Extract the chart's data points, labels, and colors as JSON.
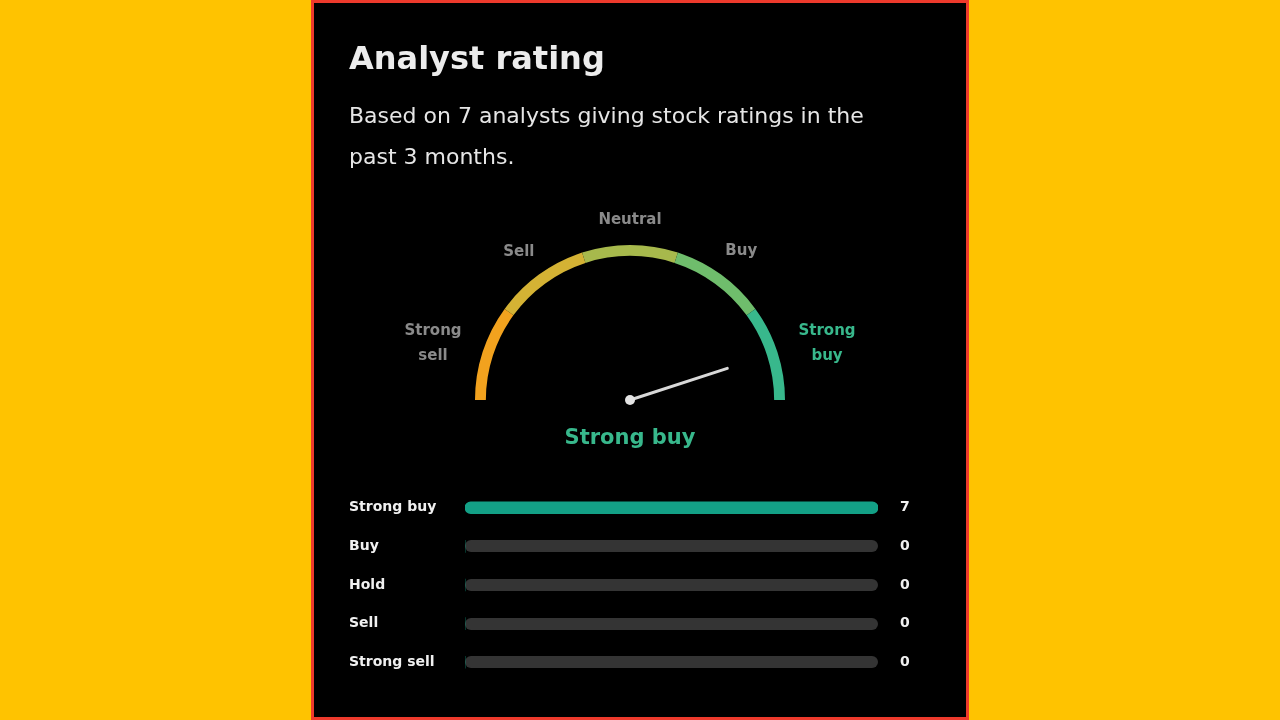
{
  "chart_data": [
    {
      "type": "donut",
      "title": "Analyst rating",
      "subtitle": "Based on 7 analysts giving stock ratings in the past 3 months.",
      "categories": [
        "Strong sell",
        "Sell",
        "Neutral",
        "Buy",
        "Strong buy"
      ],
      "values": [
        20,
        20,
        20,
        20,
        20
      ],
      "colors": [
        "#f2a21e",
        "#d4b234",
        "#a7b94c",
        "#6fbd6c",
        "#38b88c"
      ],
      "needle": "Strong buy"
    },
    {
      "type": "bar",
      "orientation": "horizontal",
      "categories": [
        "Strong buy",
        "Buy",
        "Hold",
        "Sell",
        "Strong sell"
      ],
      "values": [
        7,
        0,
        0,
        0,
        0
      ],
      "color": "#13a086",
      "xlim": [
        0,
        7
      ],
      "data_labels": true,
      "tick_labels": "y",
      "grid": false
    }
  ]
}
